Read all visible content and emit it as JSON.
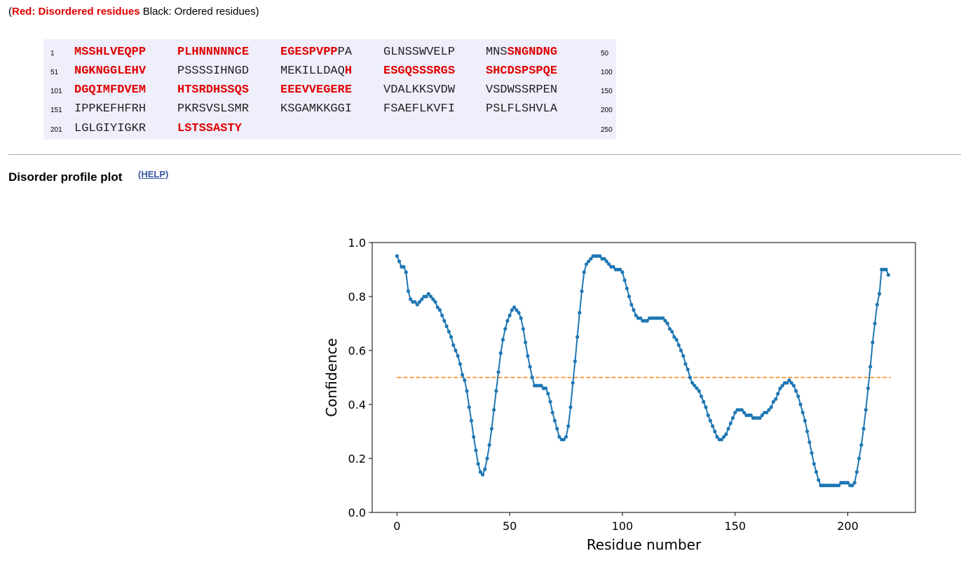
{
  "legend": {
    "open": "(",
    "disordered": "Red: Disordered residues",
    "ordered": " Black: Ordered residues)"
  },
  "sequence": {
    "rows": [
      {
        "start": "1",
        "end": "50",
        "chunks": [
          [
            {
              "t": "MSSHLVEQPP",
              "d": true
            }
          ],
          [
            {
              "t": "PLHNNNNNCE",
              "d": true
            }
          ],
          [
            {
              "t": "EGESPVPP",
              "d": true
            },
            {
              "t": "PA",
              "d": false
            }
          ],
          [
            {
              "t": "GLNSSWVELP",
              "d": false
            }
          ],
          [
            {
              "t": "MNS",
              "d": false
            },
            {
              "t": "SNGNDNG",
              "d": true
            }
          ]
        ]
      },
      {
        "start": "51",
        "end": "100",
        "chunks": [
          [
            {
              "t": "NGKNGGLEHV",
              "d": true
            }
          ],
          [
            {
              "t": "PSSSSIHNGD",
              "d": false
            }
          ],
          [
            {
              "t": "MEKILLDAQ",
              "d": false
            },
            {
              "t": "H",
              "d": true
            }
          ],
          [
            {
              "t": "ESGQSSSRGS",
              "d": true
            }
          ],
          [
            {
              "t": "SHCDSPSPQE",
              "d": true
            }
          ]
        ]
      },
      {
        "start": "101",
        "end": "150",
        "chunks": [
          [
            {
              "t": "DGQIMFDVEM",
              "d": true
            }
          ],
          [
            {
              "t": "HTSRDHSSQS",
              "d": true
            }
          ],
          [
            {
              "t": "EEEVVEGERE",
              "d": true
            }
          ],
          [
            {
              "t": "VDALKKSVDW",
              "d": false
            }
          ],
          [
            {
              "t": "VSDWSSRPEN",
              "d": false
            }
          ]
        ]
      },
      {
        "start": "151",
        "end": "200",
        "chunks": [
          [
            {
              "t": "IPPKEFHFRH",
              "d": false
            }
          ],
          [
            {
              "t": "PKRSVSLSMR",
              "d": false
            }
          ],
          [
            {
              "t": "KSGAMKKGGI",
              "d": false
            }
          ],
          [
            {
              "t": "FSAEFLKVFI",
              "d": false
            }
          ],
          [
            {
              "t": "PSLFLSHVLA",
              "d": false
            }
          ]
        ]
      },
      {
        "start": "201",
        "end": "250",
        "chunks": [
          [
            {
              "t": "LGLGIYIGKR",
              "d": false
            }
          ],
          [
            {
              "t": "LSTSSASTY",
              "d": true
            }
          ]
        ]
      }
    ]
  },
  "section": {
    "heading": "Disorder profile plot",
    "help_link": "(HELP)"
  },
  "colors": {
    "disordered": "#e00000",
    "series": "#1f77b4",
    "threshold": "#ff7f0e",
    "sequence_bg": "#efeefb"
  },
  "chart_data": {
    "type": "line",
    "xlabel": "Residue number",
    "ylabel": "Confidence",
    "xlim": [
      -11,
      230
    ],
    "ylim": [
      0,
      1
    ],
    "xticks": [
      0,
      50,
      100,
      150,
      200
    ],
    "yticks": [
      0.0,
      0.2,
      0.4,
      0.6,
      0.8,
      1.0
    ],
    "xtick_labels": [
      "0",
      "50",
      "100",
      "150",
      "200"
    ],
    "ytick_labels": [
      "0.0",
      "0.2",
      "0.4",
      "0.6",
      "0.8",
      "1.0"
    ],
    "threshold": {
      "y": 0.5,
      "x": [
        0,
        219
      ],
      "style": "dashed"
    },
    "grid": false,
    "series": [
      {
        "x_start": 0,
        "x_step": 1,
        "marker": "dot",
        "values": [
          0.95,
          0.93,
          0.91,
          0.91,
          0.89,
          0.82,
          0.79,
          0.78,
          0.78,
          0.77,
          0.78,
          0.79,
          0.8,
          0.8,
          0.81,
          0.8,
          0.79,
          0.78,
          0.76,
          0.75,
          0.73,
          0.71,
          0.69,
          0.67,
          0.65,
          0.62,
          0.6,
          0.58,
          0.55,
          0.51,
          0.49,
          0.45,
          0.39,
          0.34,
          0.28,
          0.23,
          0.18,
          0.15,
          0.14,
          0.16,
          0.2,
          0.25,
          0.31,
          0.38,
          0.45,
          0.52,
          0.59,
          0.64,
          0.68,
          0.71,
          0.73,
          0.75,
          0.76,
          0.75,
          0.74,
          0.72,
          0.68,
          0.63,
          0.58,
          0.54,
          0.5,
          0.47,
          0.47,
          0.47,
          0.47,
          0.46,
          0.46,
          0.44,
          0.41,
          0.37,
          0.34,
          0.31,
          0.28,
          0.27,
          0.27,
          0.28,
          0.32,
          0.39,
          0.48,
          0.56,
          0.65,
          0.74,
          0.82,
          0.89,
          0.92,
          0.93,
          0.94,
          0.95,
          0.95,
          0.95,
          0.95,
          0.94,
          0.94,
          0.93,
          0.92,
          0.91,
          0.91,
          0.9,
          0.9,
          0.9,
          0.89,
          0.86,
          0.83,
          0.8,
          0.77,
          0.75,
          0.73,
          0.72,
          0.72,
          0.71,
          0.71,
          0.71,
          0.72,
          0.72,
          0.72,
          0.72,
          0.72,
          0.72,
          0.72,
          0.71,
          0.7,
          0.68,
          0.67,
          0.65,
          0.64,
          0.62,
          0.6,
          0.58,
          0.55,
          0.53,
          0.5,
          0.48,
          0.47,
          0.46,
          0.45,
          0.43,
          0.41,
          0.39,
          0.36,
          0.34,
          0.32,
          0.3,
          0.28,
          0.27,
          0.27,
          0.28,
          0.29,
          0.31,
          0.33,
          0.35,
          0.37,
          0.38,
          0.38,
          0.38,
          0.37,
          0.36,
          0.36,
          0.36,
          0.35,
          0.35,
          0.35,
          0.35,
          0.36,
          0.37,
          0.37,
          0.38,
          0.39,
          0.41,
          0.42,
          0.44,
          0.46,
          0.47,
          0.48,
          0.48,
          0.49,
          0.48,
          0.47,
          0.45,
          0.43,
          0.4,
          0.37,
          0.34,
          0.3,
          0.26,
          0.22,
          0.18,
          0.15,
          0.12,
          0.1,
          0.1,
          0.1,
          0.1,
          0.1,
          0.1,
          0.1,
          0.1,
          0.1,
          0.11,
          0.11,
          0.11,
          0.11,
          0.1,
          0.1,
          0.11,
          0.15,
          0.2,
          0.25,
          0.31,
          0.38,
          0.46,
          0.54,
          0.63,
          0.7,
          0.77,
          0.81,
          0.9,
          0.9,
          0.9,
          0.88
        ]
      }
    ]
  }
}
